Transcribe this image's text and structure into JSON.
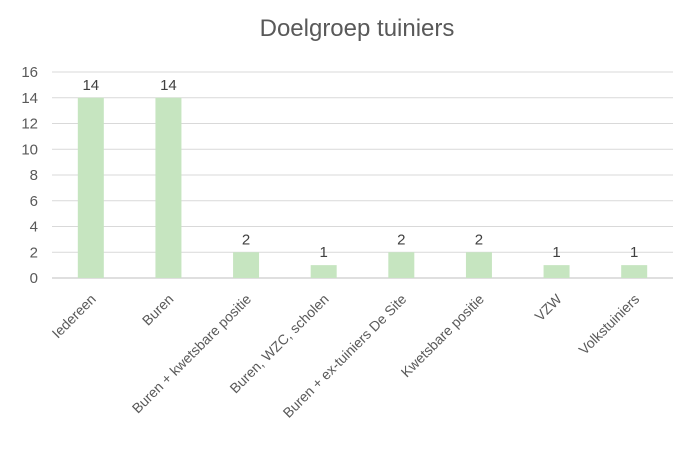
{
  "chart_data": {
    "type": "bar",
    "title": "Doelgroep tuiniers",
    "xlabel": "",
    "ylabel": "",
    "categories": [
      "Iedereen",
      "Buren",
      "Buren + kwetsbare positie",
      "Buren, WZC, scholen",
      "Buren + ex-tuiniers De Site",
      "Kwetsbare positie",
      "VZW",
      "Volkstuiniers"
    ],
    "values": [
      14,
      14,
      2,
      1,
      2,
      2,
      1,
      1
    ],
    "ylim": [
      0,
      16
    ],
    "yticks": [
      "0",
      "2",
      "4",
      "6",
      "8",
      "10",
      "12",
      "14",
      "16"
    ],
    "data_labels": [
      "14",
      "14",
      "2",
      "1",
      "2",
      "2",
      "1",
      "1"
    ],
    "grid": true,
    "legend": "none",
    "bar_color": "#c6e5c0"
  }
}
